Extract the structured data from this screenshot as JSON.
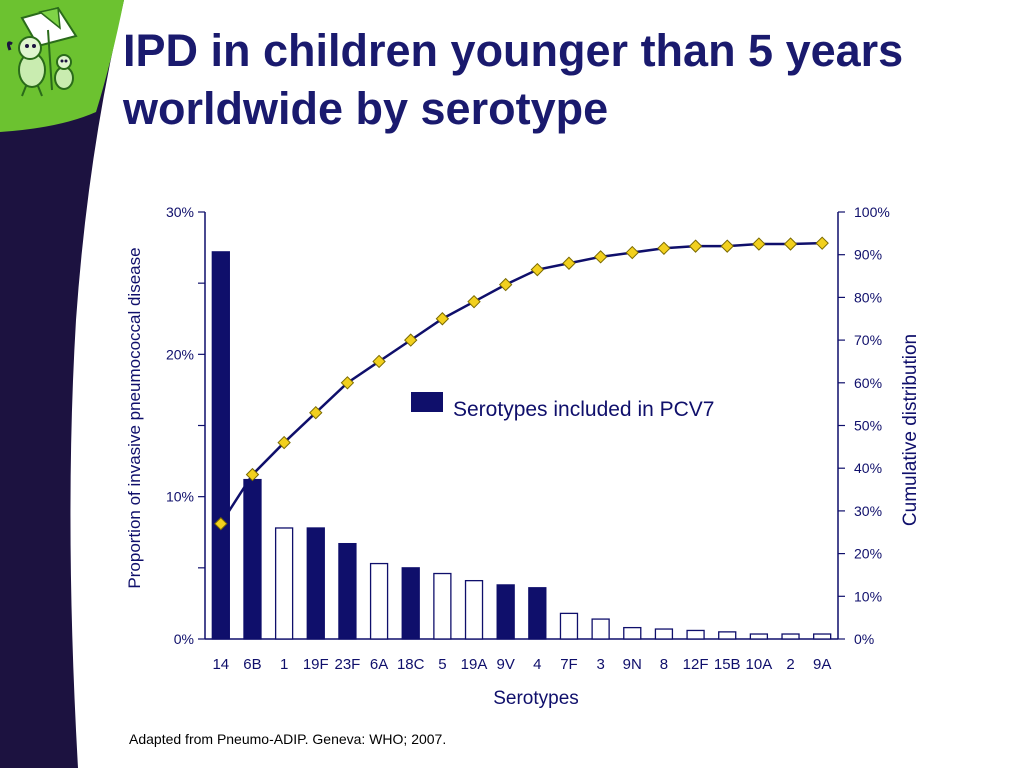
{
  "slide": {
    "title_line1": "IPD in children younger than 5 years",
    "title_line2": "worldwide by serotype",
    "source": "Adapted from Pneumo-ADIP. Geneva: WHO; 2007.",
    "colors": {
      "navy": "#0f0f6b",
      "green": "#6cc230",
      "marker": "#f2d01e",
      "frame": "#1c1240"
    }
  },
  "chart_data": {
    "type": "bar",
    "xlabel": "Serotypes",
    "ylabel": "Proportion of invasive pneumococcal disease",
    "y2label": "Cumulative  distribution",
    "legend": "Serotypes included in PCV7",
    "categories": [
      "14",
      "6B",
      "1",
      "19F",
      "23F",
      "6A",
      "18C",
      "5",
      "19A",
      "9V",
      "4",
      "7F",
      "3",
      "9N",
      "8",
      "12F",
      "15B",
      "10A",
      "2",
      "9A"
    ],
    "values": [
      27.2,
      11.2,
      7.8,
      7.8,
      6.7,
      5.3,
      5.0,
      4.6,
      4.1,
      3.8,
      3.6,
      1.8,
      1.4,
      0.8,
      0.7,
      0.6,
      0.5,
      0.35,
      0.35,
      0.35
    ],
    "in_pcv7": [
      true,
      true,
      false,
      true,
      true,
      false,
      true,
      false,
      false,
      true,
      true,
      false,
      false,
      false,
      false,
      false,
      false,
      false,
      false,
      false
    ],
    "cumulative": [
      27,
      38.5,
      46,
      53,
      60,
      65,
      70,
      75,
      79,
      83,
      86.5,
      88,
      89.5,
      90.5,
      91.5,
      92,
      92,
      92.5,
      92.5,
      92.7
    ],
    "ylim": [
      0,
      30
    ],
    "y2lim": [
      0,
      100
    ],
    "yticks": [
      "0%",
      "10%",
      "20%",
      "30%"
    ],
    "y2ticks": [
      "0%",
      "10%",
      "20%",
      "30%",
      "40%",
      "50%",
      "60%",
      "70%",
      "80%",
      "90%",
      "100%"
    ],
    "grid": false,
    "legend_position": "center"
  }
}
